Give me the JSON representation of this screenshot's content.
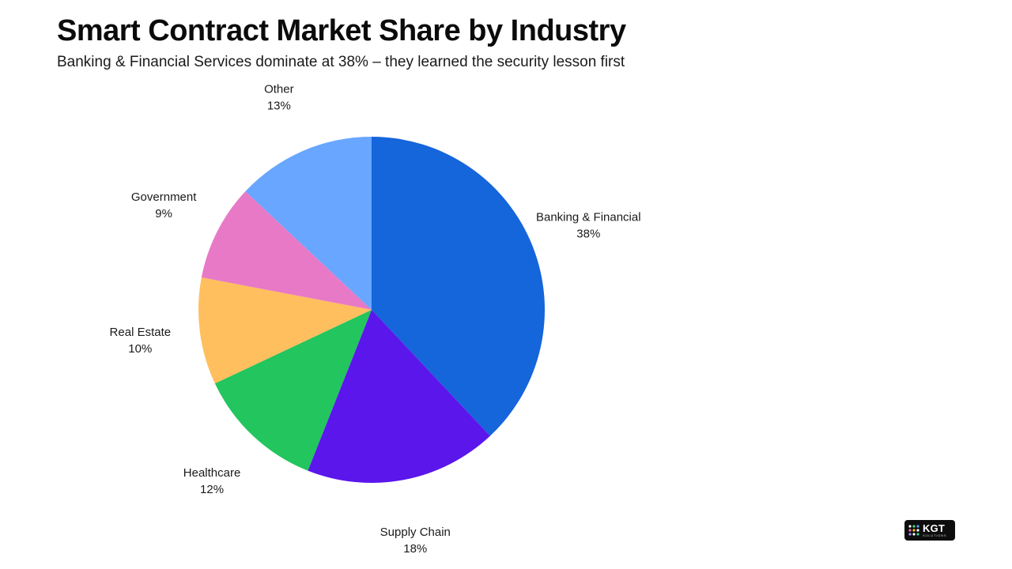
{
  "title": "Smart Contract Market Share by Industry",
  "subtitle": "Banking & Financial Services dominate at 38% – they learned the security lesson first",
  "chart_data": {
    "type": "pie",
    "title": "Smart Contract Market Share by Industry",
    "unit": "%",
    "slices": [
      {
        "label": "Banking & Financial",
        "value": 38,
        "value_label": "38%",
        "color": "#1565DB"
      },
      {
        "label": "Supply Chain",
        "value": 18,
        "value_label": "18%",
        "color": "#5B16EC"
      },
      {
        "label": "Healthcare",
        "value": 12,
        "value_label": "12%",
        "color": "#22C55E"
      },
      {
        "label": "Real Estate",
        "value": 10,
        "value_label": "10%",
        "color": "#FFBF5E"
      },
      {
        "label": "Government",
        "value": 9,
        "value_label": "9%",
        "color": "#E879C6"
      },
      {
        "label": "Other",
        "value": 13,
        "value_label": "13%",
        "color": "#68A6FF"
      }
    ],
    "start_angle": "12 o'clock",
    "direction": "clockwise",
    "legend": "none"
  },
  "logo": {
    "text": "KGT",
    "subtext": "SOLUTIONS",
    "dot_colors": [
      "#ffffff",
      "#4ade80",
      "#60a5fa",
      "#f472b6",
      "#facc15",
      "#ffffff",
      "#a78bfa",
      "#ffffff",
      "#34d399"
    ]
  }
}
